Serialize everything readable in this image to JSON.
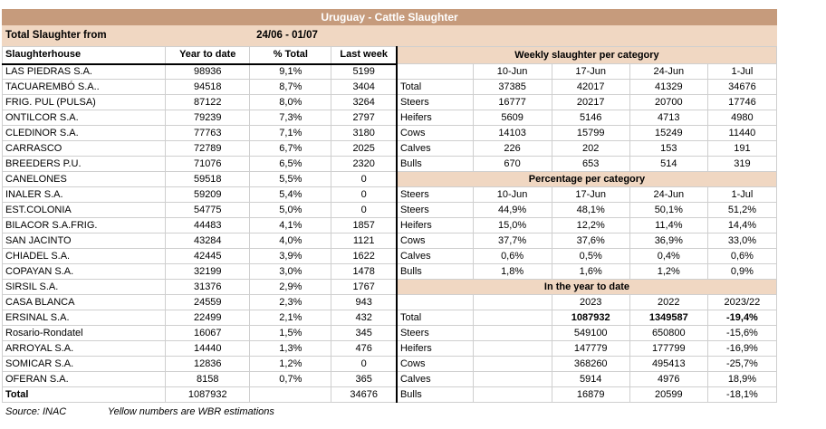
{
  "title": "Uruguay - Cattle Slaughter",
  "subtitle": {
    "label": "Total Slaughter from",
    "date_range": "24/06 - 01/07"
  },
  "left_table": {
    "headers": [
      "Slaughterhouse",
      "Year to date",
      "% Total",
      "Last week"
    ],
    "rows": [
      [
        "LAS PIEDRAS S.A.",
        "98936",
        "9,1%",
        "5199"
      ],
      [
        "TACUAREMBÓ S.A..",
        "94518",
        "8,7%",
        "3404"
      ],
      [
        "FRIG. PUL (PULSA)",
        "87122",
        "8,0%",
        "3264"
      ],
      [
        "ONTILCOR S.A.",
        "79239",
        "7,3%",
        "2797"
      ],
      [
        "CLEDINOR S.A.",
        "77763",
        "7,1%",
        "3180"
      ],
      [
        "CARRASCO",
        "72789",
        "6,7%",
        "2025"
      ],
      [
        "BREEDERS P.U.",
        "71076",
        "6,5%",
        "2320"
      ],
      [
        "CANELONES",
        "59518",
        "5,5%",
        "0"
      ],
      [
        "INALER S.A.",
        "59209",
        "5,4%",
        "0"
      ],
      [
        "EST.COLONIA",
        "54775",
        "5,0%",
        "0"
      ],
      [
        "BILACOR S.A.FRIG.",
        "44483",
        "4,1%",
        "1857"
      ],
      [
        "SAN JACINTO",
        "43284",
        "4,0%",
        "1121"
      ],
      [
        "CHIADEL S.A.",
        "42445",
        "3,9%",
        "1622"
      ],
      [
        "COPAYAN S.A.",
        "32199",
        "3,0%",
        "1478"
      ],
      [
        "SIRSIL S.A.",
        "31376",
        "2,9%",
        "1767"
      ],
      [
        "CASA BLANCA",
        "24559",
        "2,3%",
        "943"
      ],
      [
        "ERSINAL S.A.",
        "22499",
        "2,1%",
        "432"
      ],
      [
        "Rosario-Rondatel",
        "16067",
        "1,5%",
        "345"
      ],
      [
        "ARROYAL S.A.",
        "14440",
        "1,3%",
        "476"
      ],
      [
        "SOMICAR S.A.",
        "12836",
        "1,2%",
        "0"
      ],
      [
        "OFERAN S.A.",
        "8158",
        "0,7%",
        "365"
      ],
      [
        "Total",
        "1087932",
        "",
        "34676"
      ]
    ]
  },
  "right_panel": {
    "weekly": {
      "title": "Weekly slaughter per category",
      "col_headers": [
        "",
        "10-Jun",
        "17-Jun",
        "24-Jun",
        "1-Jul"
      ],
      "rows": [
        [
          "Total",
          "37385",
          "42017",
          "41329",
          "34676"
        ],
        [
          "Steers",
          "16777",
          "20217",
          "20700",
          "17746"
        ],
        [
          "Heifers",
          "5609",
          "5146",
          "4713",
          "4980"
        ],
        [
          "Cows",
          "14103",
          "15799",
          "15249",
          "11440"
        ],
        [
          "Calves",
          "226",
          "202",
          "153",
          "191"
        ],
        [
          "Bulls",
          "670",
          "653",
          "514",
          "319"
        ]
      ]
    },
    "percentage": {
      "title": "Percentage per category",
      "col_headers": [
        "Steers",
        "10-Jun",
        "17-Jun",
        "24-Jun",
        "1-Jul"
      ],
      "rows": [
        [
          "Steers",
          "44,9%",
          "48,1%",
          "50,1%",
          "51,2%"
        ],
        [
          "Heifers",
          "15,0%",
          "12,2%",
          "11,4%",
          "14,4%"
        ],
        [
          "Cows",
          "37,7%",
          "37,6%",
          "36,9%",
          "33,0%"
        ],
        [
          "Calves",
          "0,6%",
          "0,5%",
          "0,4%",
          "0,6%"
        ],
        [
          "Bulls",
          "1,8%",
          "1,6%",
          "1,2%",
          "0,9%"
        ]
      ]
    },
    "year_to_date": {
      "title": "In the year to date",
      "col_headers": [
        "",
        "",
        "2023",
        "2022",
        "2023/22"
      ],
      "bold_row_index": 0,
      "rows": [
        [
          "Total",
          "",
          "1087932",
          "1349587",
          "-19,4%"
        ],
        [
          "Steers",
          "",
          "549100",
          "650800",
          "-15,6%"
        ],
        [
          "Heifers",
          "",
          "147779",
          "177799",
          "-16,9%"
        ],
        [
          "Cows",
          "",
          "368260",
          "495413",
          "-25,7%"
        ],
        [
          "Calves",
          "",
          "5914",
          "4976",
          "18,9%"
        ],
        [
          "Bulls",
          "",
          "16879",
          "20599",
          "-18,1%"
        ]
      ]
    }
  },
  "footer": {
    "source": "Source: INAC",
    "note": "Yellow numbers are WBR estimations"
  },
  "colors": {
    "title_band": "#C69B7C",
    "section_band": "#F0D7C2",
    "grid_line": "#CFCFCF",
    "divider": "#000000",
    "title_text": "#FFFFFF"
  }
}
